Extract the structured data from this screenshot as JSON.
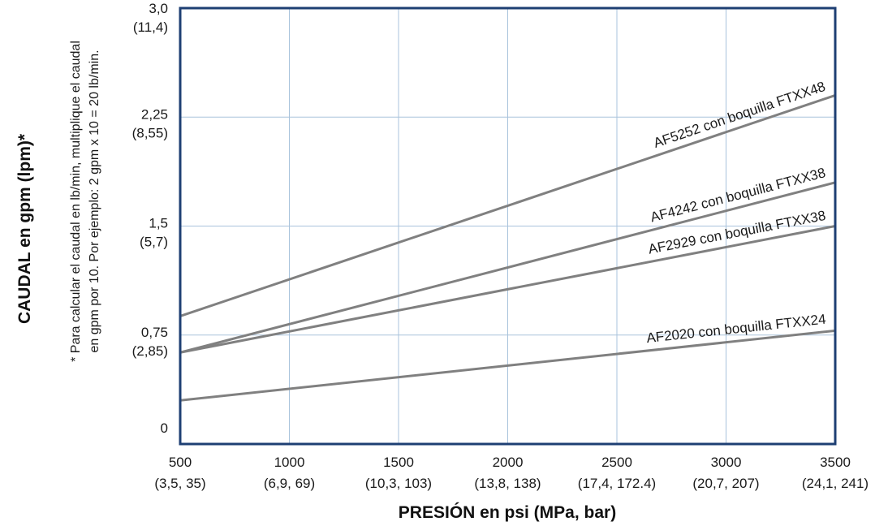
{
  "chart_data": {
    "type": "line",
    "title": "",
    "xlabel": "PRESIÓN en psi (MPa, bar)",
    "ylabel": "CAUDAL en gpm (lpm)*",
    "note_lines": [
      "* Para calcular el caudal en lb/min, multiplique el caudal",
      "en gpm por 10. Por ejemplo: 2 gpm x 10 = 20 lb/min."
    ],
    "xlim": [
      500,
      3500
    ],
    "ylim": [
      0,
      3.0
    ],
    "grid": true,
    "x_ticks": [
      {
        "value": 500,
        "label": "500",
        "sublabel": "(3,5, 35)"
      },
      {
        "value": 1000,
        "label": "1000",
        "sublabel": "(6,9, 69)"
      },
      {
        "value": 1500,
        "label": "1500",
        "sublabel": "(10,3, 103)"
      },
      {
        "value": 2000,
        "label": "2000",
        "sublabel": "(13,8, 138)"
      },
      {
        "value": 2500,
        "label": "2500",
        "sublabel": "(17,4, 172.4)"
      },
      {
        "value": 3000,
        "label": "3000",
        "sublabel": "(20,7, 207)"
      },
      {
        "value": 3500,
        "label": "3500",
        "sublabel": "(24,1, 241)"
      }
    ],
    "y_ticks": [
      {
        "value": 0,
        "label": "0",
        "sublabel": ""
      },
      {
        "value": 0.75,
        "label": "0,75",
        "sublabel": "(2,85)"
      },
      {
        "value": 1.5,
        "label": "1,5",
        "sublabel": "(5,7)"
      },
      {
        "value": 2.25,
        "label": "2,25",
        "sublabel": "(8,55)"
      },
      {
        "value": 3.0,
        "label": "3,0",
        "sublabel": "(11,4)"
      }
    ],
    "series": [
      {
        "name": "AF5252 con boquilla FTXX48",
        "x": [
          500,
          3500
        ],
        "y": [
          0.88,
          2.4
        ]
      },
      {
        "name": "AF4242 con boquilla FTXX38",
        "x": [
          500,
          3500
        ],
        "y": [
          0.63,
          1.8
        ]
      },
      {
        "name": "AF2929 con boquilla FTXX38",
        "x": [
          500,
          3500
        ],
        "y": [
          0.63,
          1.5
        ]
      },
      {
        "name": "AF2020 con boquilla FTXX24",
        "x": [
          500,
          3500
        ],
        "y": [
          0.3,
          0.78
        ]
      }
    ],
    "colors": {
      "frame": "#1e3f73",
      "grid": "#a9c3dc",
      "lines": "#808080"
    }
  }
}
